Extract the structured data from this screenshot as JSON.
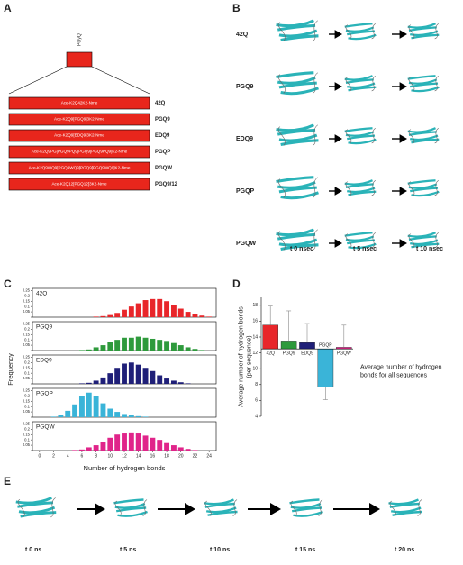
{
  "panel_labels": [
    "A",
    "B",
    "C",
    "D",
    "E"
  ],
  "panel_a": {
    "header": "PolyQ",
    "rows": [
      {
        "sequence": "Ace-K2Q42K2-Nme",
        "label": "42Q"
      },
      {
        "sequence": "Ace-K2Q9[PGQ9]3K2-Nme",
        "label": "PGQ9"
      },
      {
        "sequence": "Ace-K2Q9[EDQ9]3K2-Nme",
        "label": "EDQ9"
      },
      {
        "sequence": "Ace-K2Q9PG[PGQ9PQ9]PGQ9[PGQ9PQ9]K2-Nme",
        "label": "PGQP"
      },
      {
        "sequence": "Ace-K2Q9WQ9[PGQ9WQ9]PGQ9[PGQ9WQ9]K2-Nme",
        "label": "PGQW"
      },
      {
        "sequence": "Ace-K2Q12[PGQ12]3K2-Nme",
        "label": "PGQ9/12"
      }
    ]
  },
  "panel_b": {
    "rows": [
      "42Q",
      "PGQ9",
      "EDQ9",
      "PGQP",
      "PGQW"
    ],
    "times": [
      "t 0 nsec",
      "t 5 nsec",
      "t 10 nsec"
    ]
  },
  "panel_c": {
    "ylabel": "Frequency",
    "xlabel": "Number of hydrogen bonds"
  },
  "panel_e": {
    "times": [
      "t 0 ns",
      "t 5 ns",
      "t 10 ns",
      "t 15 ns",
      "t 20 ns"
    ]
  },
  "chart_data": [
    {
      "type": "bar",
      "title": "42Q",
      "color": "#e8262a",
      "xlim": [
        -1,
        25
      ],
      "ylim": [
        0,
        0.27
      ],
      "yticks": [
        0,
        0.05,
        0.1,
        0.15,
        0.2,
        0.25
      ],
      "x": [
        8,
        9,
        10,
        11,
        12,
        13,
        14,
        15,
        16,
        17,
        18,
        19,
        20,
        21,
        22,
        23,
        24
      ],
      "values": [
        0.005,
        0.01,
        0.02,
        0.04,
        0.07,
        0.1,
        0.13,
        0.16,
        0.17,
        0.17,
        0.15,
        0.11,
        0.08,
        0.05,
        0.03,
        0.015,
        0.005
      ]
    },
    {
      "type": "bar",
      "title": "PGQ9",
      "color": "#2e9a3c",
      "xlim": [
        -1,
        25
      ],
      "ylim": [
        0,
        0.27
      ],
      "yticks": [
        0,
        0.05,
        0.1,
        0.15,
        0.2,
        0.25
      ],
      "x": [
        6,
        7,
        8,
        9,
        10,
        11,
        12,
        13,
        14,
        15,
        16,
        17,
        18,
        19,
        20,
        21,
        22,
        23
      ],
      "values": [
        0.005,
        0.01,
        0.03,
        0.05,
        0.08,
        0.1,
        0.12,
        0.12,
        0.13,
        0.12,
        0.11,
        0.1,
        0.09,
        0.07,
        0.05,
        0.03,
        0.015,
        0.005
      ]
    },
    {
      "type": "bar",
      "title": "EDQ9",
      "color": "#1f1f78",
      "xlim": [
        -1,
        25
      ],
      "ylim": [
        0,
        0.27
      ],
      "yticks": [
        0,
        0.05,
        0.1,
        0.15,
        0.2,
        0.25
      ],
      "x": [
        6,
        7,
        8,
        9,
        10,
        11,
        12,
        13,
        14,
        15,
        16,
        17,
        18,
        19,
        20,
        21
      ],
      "values": [
        0.005,
        0.01,
        0.03,
        0.06,
        0.1,
        0.15,
        0.19,
        0.2,
        0.18,
        0.15,
        0.12,
        0.08,
        0.05,
        0.03,
        0.015,
        0.005
      ]
    },
    {
      "type": "bar",
      "title": "PGQP",
      "color": "#3ab4d8",
      "xlim": [
        -1,
        25
      ],
      "ylim": [
        0,
        0.27
      ],
      "yticks": [
        0,
        0.05,
        0.1,
        0.15,
        0.2,
        0.25
      ],
      "x": [
        2,
        3,
        4,
        5,
        6,
        7,
        8,
        9,
        10,
        11,
        12,
        13,
        14,
        15
      ],
      "values": [
        0.005,
        0.02,
        0.06,
        0.12,
        0.2,
        0.23,
        0.2,
        0.13,
        0.08,
        0.05,
        0.03,
        0.02,
        0.01,
        0.005
      ]
    },
    {
      "type": "bar",
      "title": "PGQW",
      "color": "#e0248a",
      "xlim": [
        -1,
        25
      ],
      "ylim": [
        0,
        0.27
      ],
      "yticks": [
        0,
        0.05,
        0.1,
        0.15,
        0.2,
        0.25
      ],
      "xticks": [
        0,
        2,
        4,
        6,
        8,
        10,
        12,
        14,
        16,
        18,
        20,
        22,
        24
      ],
      "x": [
        5,
        6,
        7,
        8,
        9,
        10,
        11,
        12,
        13,
        14,
        15,
        16,
        17,
        18,
        19,
        20,
        21,
        22
      ],
      "values": [
        0.005,
        0.01,
        0.03,
        0.05,
        0.08,
        0.12,
        0.15,
        0.16,
        0.17,
        0.16,
        0.14,
        0.12,
        0.1,
        0.07,
        0.05,
        0.03,
        0.015,
        0.005
      ]
    },
    {
      "type": "errorbar",
      "ylabel": "Average number of hydrogen bonds\n(per sequence)",
      "annotation": "Average number of hydrogen\nbonds for all sequences",
      "categories": [
        "42Q",
        "PGQ9",
        "EDQ9",
        "PGQP",
        "PGQW"
      ],
      "values": [
        15.5,
        13.5,
        13.3,
        7.7,
        12.7
      ],
      "errors": [
        2.4,
        3.8,
        2.4,
        1.6,
        2.8
      ],
      "colors": [
        "#e8262a",
        "#2e9a3c",
        "#1f1f78",
        "#3ab4d8",
        "#e0248a"
      ],
      "baseline": 12.5,
      "ylim": [
        4,
        19
      ],
      "yticks": [
        4,
        6,
        8,
        10,
        12,
        14,
        16,
        18
      ]
    }
  ]
}
